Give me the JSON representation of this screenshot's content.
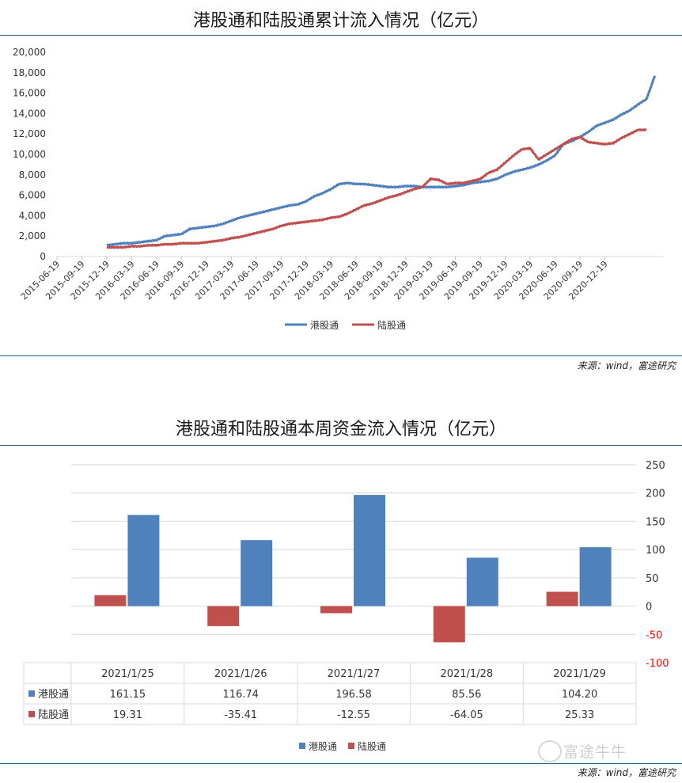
{
  "charts": {
    "top": {
      "title": "港股通和陆股通累计流入情况（亿元）",
      "source": "来源：wind，富途研究"
    },
    "bottom": {
      "title": "港股通和陆股通本周资金流入情况（亿元）",
      "source": "来源：wind，富途研究"
    }
  },
  "watermark": "富途牛牛",
  "colors": {
    "hk": "#4f81bd",
    "lu": "#c0504d",
    "rule": "#1f5f8b"
  },
  "chart_data": [
    {
      "type": "line",
      "title": "港股通和陆股通累计流入情况（亿元）",
      "xlabel": "",
      "ylabel": "",
      "ylim": [
        0,
        20000
      ],
      "yticks": [
        0,
        2000,
        4000,
        6000,
        8000,
        10000,
        12000,
        14000,
        16000,
        18000,
        20000
      ],
      "ytick_labels": [
        "0",
        "2,000",
        "4,000",
        "6,000",
        "8,000",
        "10,000",
        "12,000",
        "14,000",
        "16,000",
        "18,000",
        "20,000"
      ],
      "x_tick_labels": [
        "2015-06-19",
        "2015-09-19",
        "2015-12-19",
        "2016-03-19",
        "2016-06-19",
        "2016-09-19",
        "2016-12-19",
        "2017-03-19",
        "2017-06-19",
        "2017-09-19",
        "2017-12-19",
        "2018-03-19",
        "2018-06-19",
        "2018-09-19",
        "2018-12-19",
        "2019-03-19",
        "2019-06-19",
        "2019-09-19",
        "2019-12-19",
        "2020-03-19",
        "2020-06-19",
        "2020-09-19",
        "2020-12-19"
      ],
      "x_unit": "months since 2015-06-19",
      "legend": "bottom",
      "series": [
        {
          "name": "港股通",
          "color": "#4f81bd",
          "points": [
            [
              6,
              1100
            ],
            [
              7,
              1200
            ],
            [
              8,
              1300
            ],
            [
              9,
              1300
            ],
            [
              10,
              1400
            ],
            [
              11,
              1500
            ],
            [
              12,
              1600
            ],
            [
              13,
              2000
            ],
            [
              14,
              2100
            ],
            [
              15,
              2200
            ],
            [
              16,
              2700
            ],
            [
              17,
              2800
            ],
            [
              18,
              2900
            ],
            [
              19,
              3000
            ],
            [
              20,
              3200
            ],
            [
              21,
              3500
            ],
            [
              22,
              3800
            ],
            [
              23,
              4000
            ],
            [
              24,
              4200
            ],
            [
              25,
              4400
            ],
            [
              26,
              4600
            ],
            [
              27,
              4800
            ],
            [
              28,
              5000
            ],
            [
              29,
              5100
            ],
            [
              30,
              5400
            ],
            [
              31,
              5900
            ],
            [
              32,
              6200
            ],
            [
              33,
              6600
            ],
            [
              34,
              7100
            ],
            [
              35,
              7200
            ],
            [
              36,
              7100
            ],
            [
              37,
              7100
            ],
            [
              38,
              7000
            ],
            [
              39,
              6900
            ],
            [
              40,
              6800
            ],
            [
              41,
              6800
            ],
            [
              42,
              6900
            ],
            [
              43,
              6900
            ],
            [
              44,
              6800
            ],
            [
              45,
              6800
            ],
            [
              46,
              6800
            ],
            [
              47,
              6800
            ],
            [
              48,
              6900
            ],
            [
              49,
              7000
            ],
            [
              50,
              7200
            ],
            [
              51,
              7300
            ],
            [
              52,
              7400
            ],
            [
              53,
              7600
            ],
            [
              54,
              8000
            ],
            [
              55,
              8300
            ],
            [
              56,
              8500
            ],
            [
              57,
              8700
            ],
            [
              58,
              9000
            ],
            [
              59,
              9400
            ],
            [
              60,
              9900
            ],
            [
              61,
              11000
            ],
            [
              62,
              11300
            ],
            [
              63,
              11700
            ],
            [
              64,
              12200
            ],
            [
              65,
              12800
            ],
            [
              66,
              13100
            ],
            [
              67,
              13400
            ],
            [
              68,
              13900
            ],
            [
              69,
              14300
            ],
            [
              70,
              14900
            ],
            [
              71,
              15400
            ],
            [
              71.5,
              16500
            ],
            [
              72,
              17700
            ]
          ]
        },
        {
          "name": "陆股通",
          "color": "#c0504d",
          "points": [
            [
              6,
              900
            ],
            [
              7,
              900
            ],
            [
              8,
              900
            ],
            [
              9,
              1000
            ],
            [
              10,
              1000
            ],
            [
              11,
              1100
            ],
            [
              12,
              1100
            ],
            [
              13,
              1200
            ],
            [
              14,
              1200
            ],
            [
              15,
              1300
            ],
            [
              16,
              1300
            ],
            [
              17,
              1300
            ],
            [
              18,
              1400
            ],
            [
              19,
              1500
            ],
            [
              20,
              1600
            ],
            [
              21,
              1800
            ],
            [
              22,
              1900
            ],
            [
              23,
              2100
            ],
            [
              24,
              2300
            ],
            [
              25,
              2500
            ],
            [
              26,
              2700
            ],
            [
              27,
              3000
            ],
            [
              28,
              3200
            ],
            [
              29,
              3300
            ],
            [
              30,
              3400
            ],
            [
              31,
              3500
            ],
            [
              32,
              3600
            ],
            [
              33,
              3800
            ],
            [
              34,
              3900
            ],
            [
              35,
              4200
            ],
            [
              36,
              4600
            ],
            [
              37,
              5000
            ],
            [
              38,
              5200
            ],
            [
              39,
              5500
            ],
            [
              40,
              5800
            ],
            [
              41,
              6000
            ],
            [
              42,
              6300
            ],
            [
              43,
              6600
            ],
            [
              44,
              6800
            ],
            [
              45,
              7600
            ],
            [
              46,
              7500
            ],
            [
              47,
              7100
            ],
            [
              48,
              7200
            ],
            [
              49,
              7200
            ],
            [
              50,
              7400
            ],
            [
              51,
              7600
            ],
            [
              52,
              8200
            ],
            [
              53,
              8500
            ],
            [
              54,
              9200
            ],
            [
              55,
              9900
            ],
            [
              56,
              10500
            ],
            [
              57,
              10600
            ],
            [
              58,
              9500
            ],
            [
              59,
              10000
            ],
            [
              60,
              10500
            ],
            [
              61,
              11000
            ],
            [
              62,
              11500
            ],
            [
              63,
              11700
            ],
            [
              64,
              11200
            ],
            [
              65,
              11100
            ],
            [
              66,
              11000
            ],
            [
              67,
              11100
            ],
            [
              68,
              11600
            ],
            [
              69,
              12000
            ],
            [
              70,
              12400
            ],
            [
              71,
              12400
            ]
          ]
        }
      ]
    },
    {
      "type": "bar",
      "title": "港股通和陆股通本周资金流入情况（亿元）",
      "categories": [
        "2021/1/25",
        "2021/1/26",
        "2021/1/27",
        "2021/1/28",
        "2021/1/29"
      ],
      "ylim": [
        -100,
        250
      ],
      "yticks": [
        -100,
        -50,
        0,
        50,
        100,
        150,
        200,
        250
      ],
      "legend": "bottom",
      "series": [
        {
          "name": "港股通",
          "color": "#4f81bd",
          "values": [
            161.15,
            116.74,
            196.58,
            85.56,
            104.2
          ],
          "labels": [
            "161.15",
            "116.74",
            "196.58",
            "85.56",
            "104.20"
          ]
        },
        {
          "name": "陆股通",
          "color": "#c0504d",
          "values": [
            19.31,
            -35.41,
            -12.55,
            -64.05,
            25.33
          ],
          "labels": [
            "19.31",
            "-35.41",
            "-12.55",
            "-64.05",
            "25.33"
          ]
        }
      ]
    }
  ]
}
